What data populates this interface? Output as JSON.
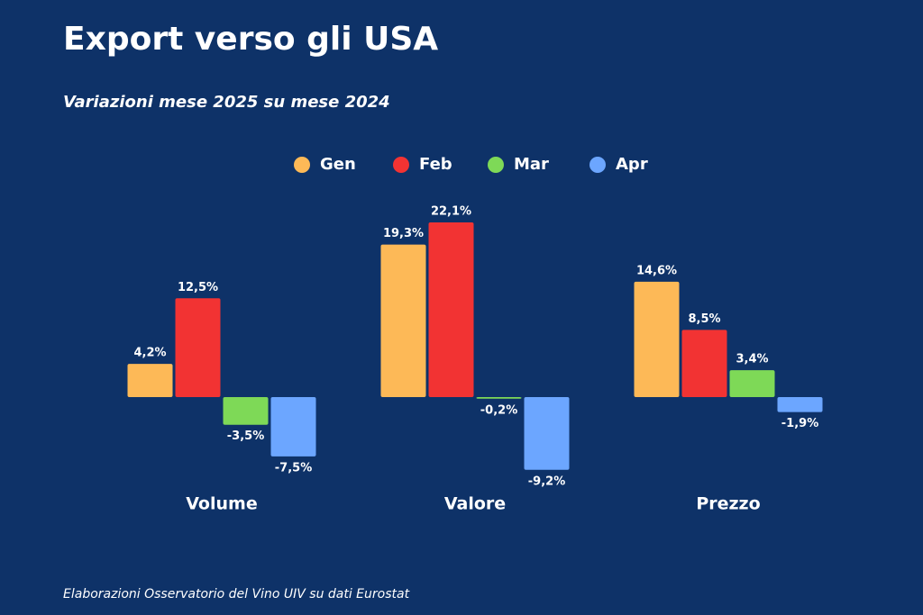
{
  "chart_data": {
    "type": "bar",
    "title": "Export verso gli USA",
    "subtitle": "Variazioni mese 2025 su mese 2024",
    "source": "Elaborazioni Osservatorio del Vino UIV su dati Eurostat",
    "categories": [
      "Volume",
      "Valore",
      "Prezzo"
    ],
    "series": [
      {
        "name": "Gen",
        "color": "#fdb957",
        "values": [
          4.2,
          19.3,
          14.6
        ],
        "value_labels": [
          "4,2%",
          "19,3%",
          "14,6%"
        ]
      },
      {
        "name": "Feb",
        "color": "#f23333",
        "values": [
          12.5,
          22.1,
          8.5
        ],
        "value_labels": [
          "12,5%",
          "22,1%",
          "8,5%"
        ]
      },
      {
        "name": "Mar",
        "color": "#7ed957",
        "values": [
          -3.5,
          -0.2,
          3.4
        ],
        "value_labels": [
          "-3,5%",
          "-0,2%",
          "3,4%"
        ]
      },
      {
        "name": "Apr",
        "color": "#6ca6ff",
        "values": [
          -7.5,
          -9.2,
          -1.9
        ],
        "value_labels": [
          "-7,5%",
          "-9,2%",
          "-1,9%"
        ]
      }
    ],
    "legend": "top"
  }
}
